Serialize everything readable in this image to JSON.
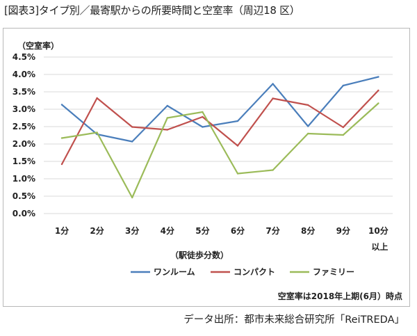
{
  "title": "[図表3]タイプ別／最寄駅からの所要時間と空室率（周辺18 区）",
  "source": "データ出所：都市未来総合研究所「ReiTREDA」",
  "chart_data": {
    "type": "line",
    "ylabel": "（空室率）",
    "xlabel": "（駅徒歩分数）",
    "note": "空室率は2018年上期(6月）時点",
    "ylim": [
      0,
      4.5
    ],
    "yticks": [
      {
        "value": 0,
        "label": "0.0%"
      },
      {
        "value": 0.5,
        "label": "0.5%"
      },
      {
        "value": 1.0,
        "label": "1.0%"
      },
      {
        "value": 1.5,
        "label": "1.5%"
      },
      {
        "value": 2.0,
        "label": "2.0%"
      },
      {
        "value": 2.5,
        "label": "2.5%"
      },
      {
        "value": 3.0,
        "label": "3.0%"
      },
      {
        "value": 3.5,
        "label": "3.5%"
      },
      {
        "value": 4.0,
        "label": "4.0%"
      },
      {
        "value": 4.5,
        "label": "4.5%"
      }
    ],
    "categories": [
      "1分",
      "2分",
      "3分",
      "4分",
      "5分",
      "6分",
      "7分",
      "8分",
      "9分",
      "10分"
    ],
    "category_note": "以上",
    "series": [
      {
        "name": "ワンルーム",
        "color": "#4a7ebb",
        "values": [
          3.13,
          2.28,
          2.07,
          3.1,
          2.49,
          2.66,
          3.73,
          2.51,
          3.68,
          3.93
        ]
      },
      {
        "name": "コンパクト",
        "color": "#c0504d",
        "values": [
          1.42,
          3.32,
          2.49,
          2.41,
          2.78,
          1.95,
          3.31,
          3.12,
          2.48,
          3.54
        ]
      },
      {
        "name": "ファミリー",
        "color": "#9bbb59",
        "values": [
          2.17,
          2.33,
          0.46,
          2.75,
          2.92,
          1.15,
          1.25,
          2.3,
          2.26,
          3.17
        ]
      }
    ]
  }
}
